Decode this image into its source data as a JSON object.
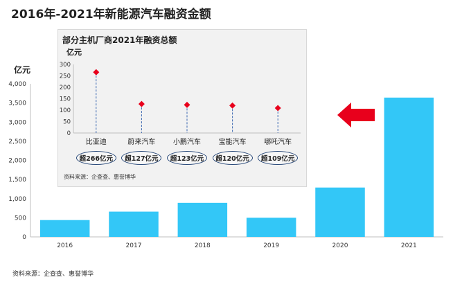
{
  "title": "2016年-2021年新能源汽车融资金额",
  "unit": "亿元",
  "source": "资料来源：企查查、惠誉博华",
  "chart_data": {
    "type": "bar",
    "categories": [
      "2016",
      "2017",
      "2018",
      "2019",
      "2020",
      "2021"
    ],
    "values": [
      440,
      660,
      890,
      500,
      1290,
      3640
    ],
    "ylim": [
      0,
      4000
    ],
    "yticks": [
      "0",
      "500",
      "1,000",
      "1,500",
      "2,000",
      "2,500",
      "3,000",
      "3,500",
      "4,000"
    ],
    "ytick_values": [
      0,
      500,
      1000,
      1500,
      2000,
      2500,
      3000,
      3500,
      4000
    ],
    "bar_color": "#33c7f7",
    "grid": false
  },
  "inset": {
    "title": "部分主机厂商2021年融资总额",
    "unit": "亿元",
    "source": "资料来源：企查查、惠誉博华",
    "chart_data": {
      "type": "scatter",
      "categories": [
        "比亚迪",
        "蔚来汽车",
        "小鹏汽车",
        "宝能汽车",
        "哪吒汽车"
      ],
      "values": [
        266,
        127,
        123,
        120,
        109
      ],
      "ylim": [
        0,
        300
      ],
      "yticks": [
        "0",
        "50",
        "100",
        "150",
        "200",
        "250",
        "300"
      ],
      "ytick_values": [
        0,
        50,
        100,
        150,
        200,
        250,
        300
      ],
      "point_color": "#e8001c",
      "labels": [
        "超266亿元",
        "超127亿元",
        "超123亿元",
        "超120亿元",
        "超109亿元"
      ]
    }
  },
  "arrow_color": "#e8001c"
}
